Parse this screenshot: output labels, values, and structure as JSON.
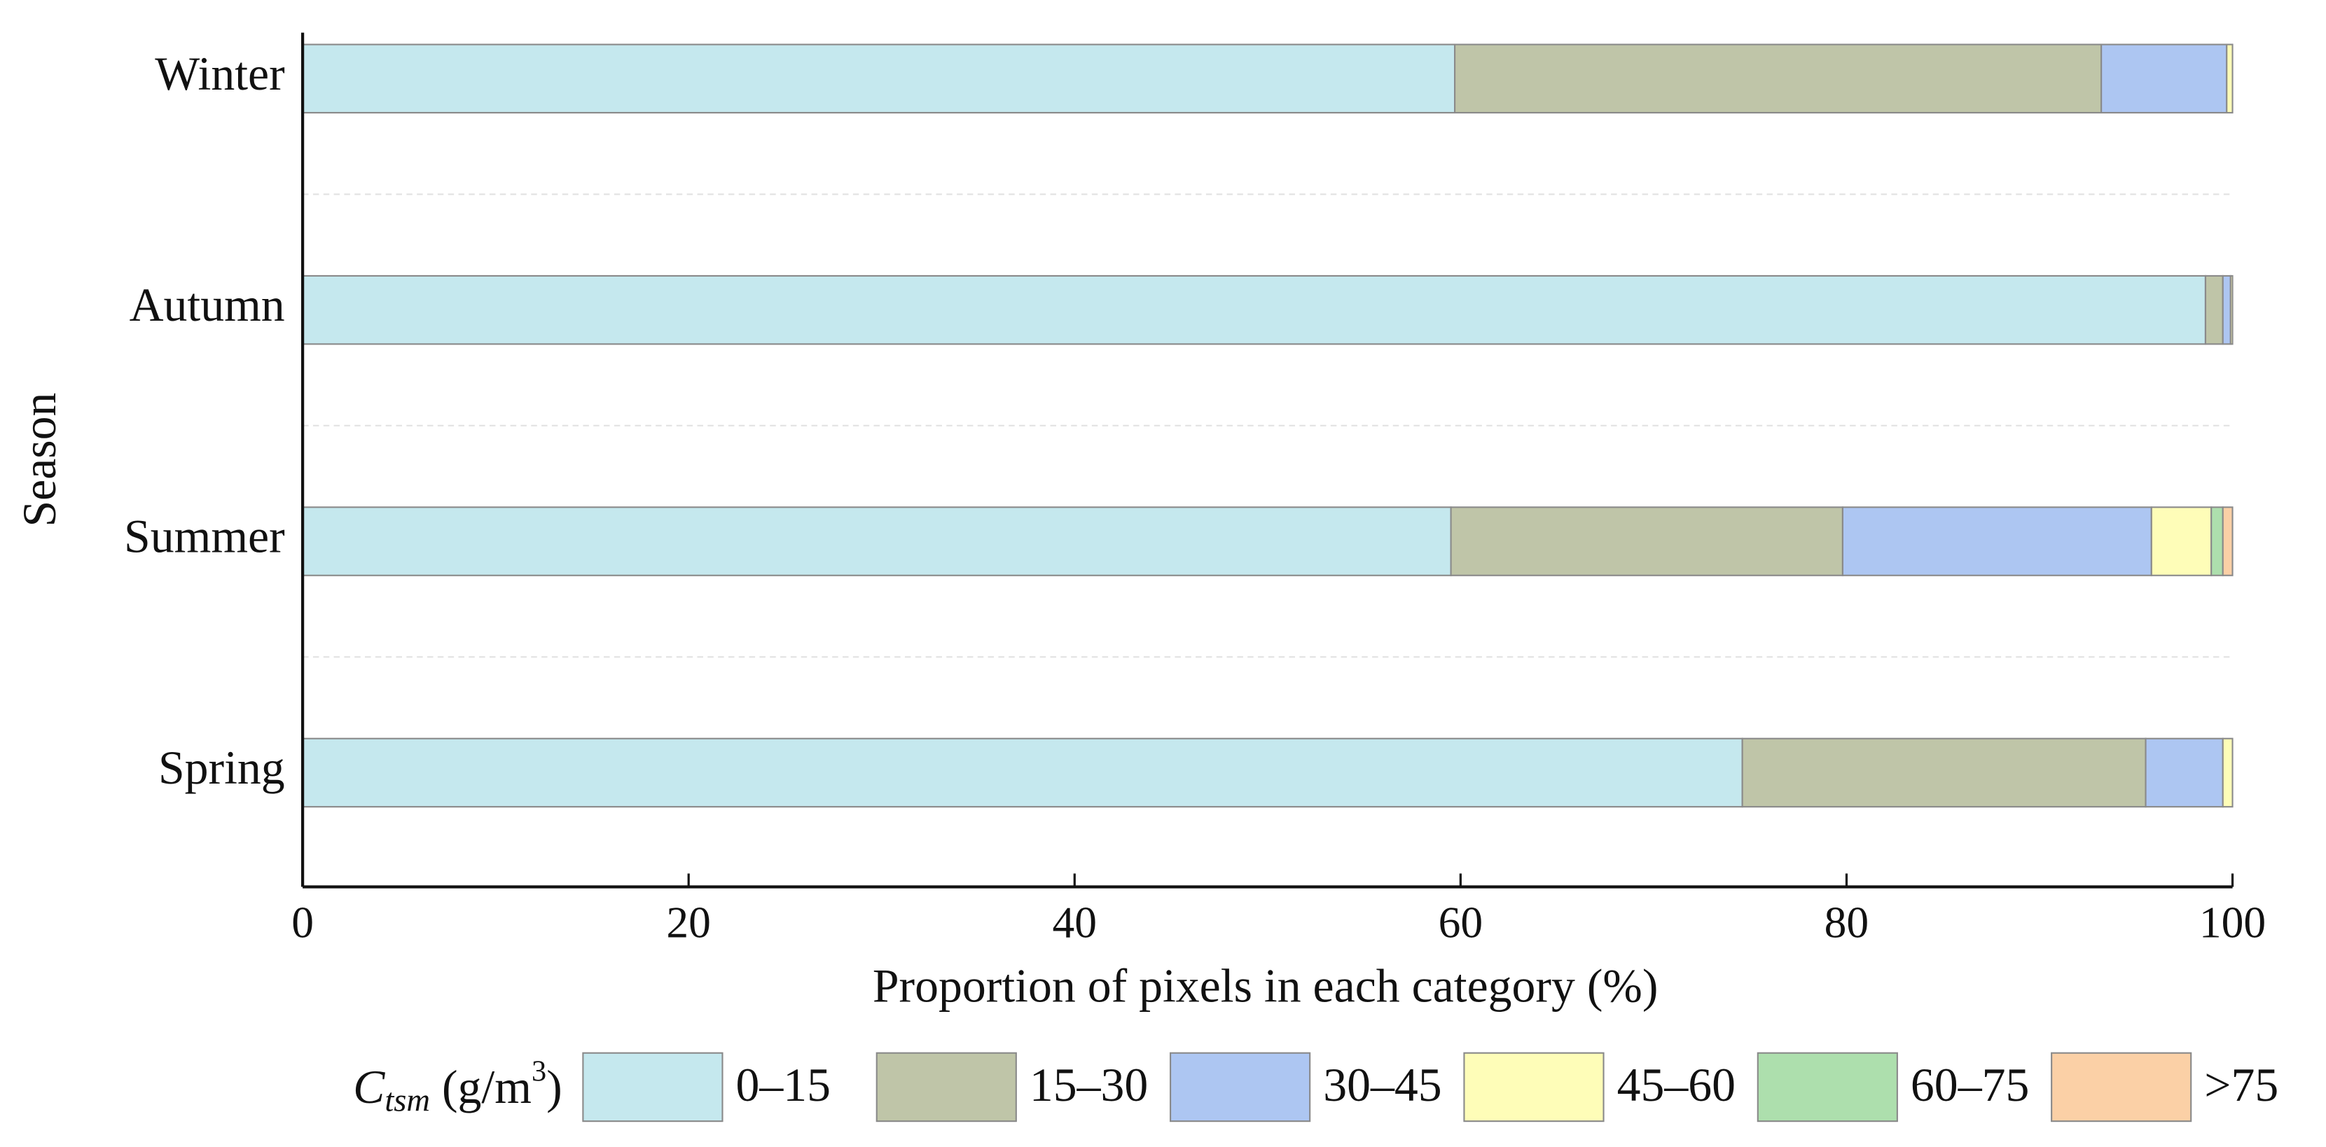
{
  "chart_data": {
    "type": "stacked_barh",
    "categories": [
      "Winter",
      "Autumn",
      "Summer",
      "Spring"
    ],
    "series": [
      {
        "name": "0–15",
        "color": "#c5e8ee",
        "values": [
          59.7,
          98.6,
          59.5,
          74.6
        ]
      },
      {
        "name": "15–30",
        "color": "#bfc5a8",
        "values": [
          33.5,
          0.9,
          20.3,
          20.9
        ]
      },
      {
        "name": "30–45",
        "color": "#adc6f2",
        "values": [
          6.5,
          0.4,
          16.0,
          4.0
        ]
      },
      {
        "name": "45–60",
        "color": "#fefdb8",
        "values": [
          0.3,
          0.1,
          3.1,
          0.5
        ]
      },
      {
        "name": "60–75",
        "color": "#addfad",
        "values": [
          0,
          0,
          0.6,
          0
        ]
      },
      {
        "name": ">75",
        "color": "#fbd0a6",
        "values": [
          0,
          0,
          0.5,
          0
        ]
      }
    ],
    "xlabel": "Proportion of pixels in each category (%)",
    "ylabel": "Season",
    "legend_title": {
      "symbol": "C",
      "subscript": "tsm",
      "unit": " (g/m",
      "superscript": "3",
      "close": ")"
    },
    "xlim": [
      0,
      100
    ],
    "xticks": [
      0,
      20,
      40,
      60,
      80,
      100
    ],
    "legend": "bottom"
  }
}
